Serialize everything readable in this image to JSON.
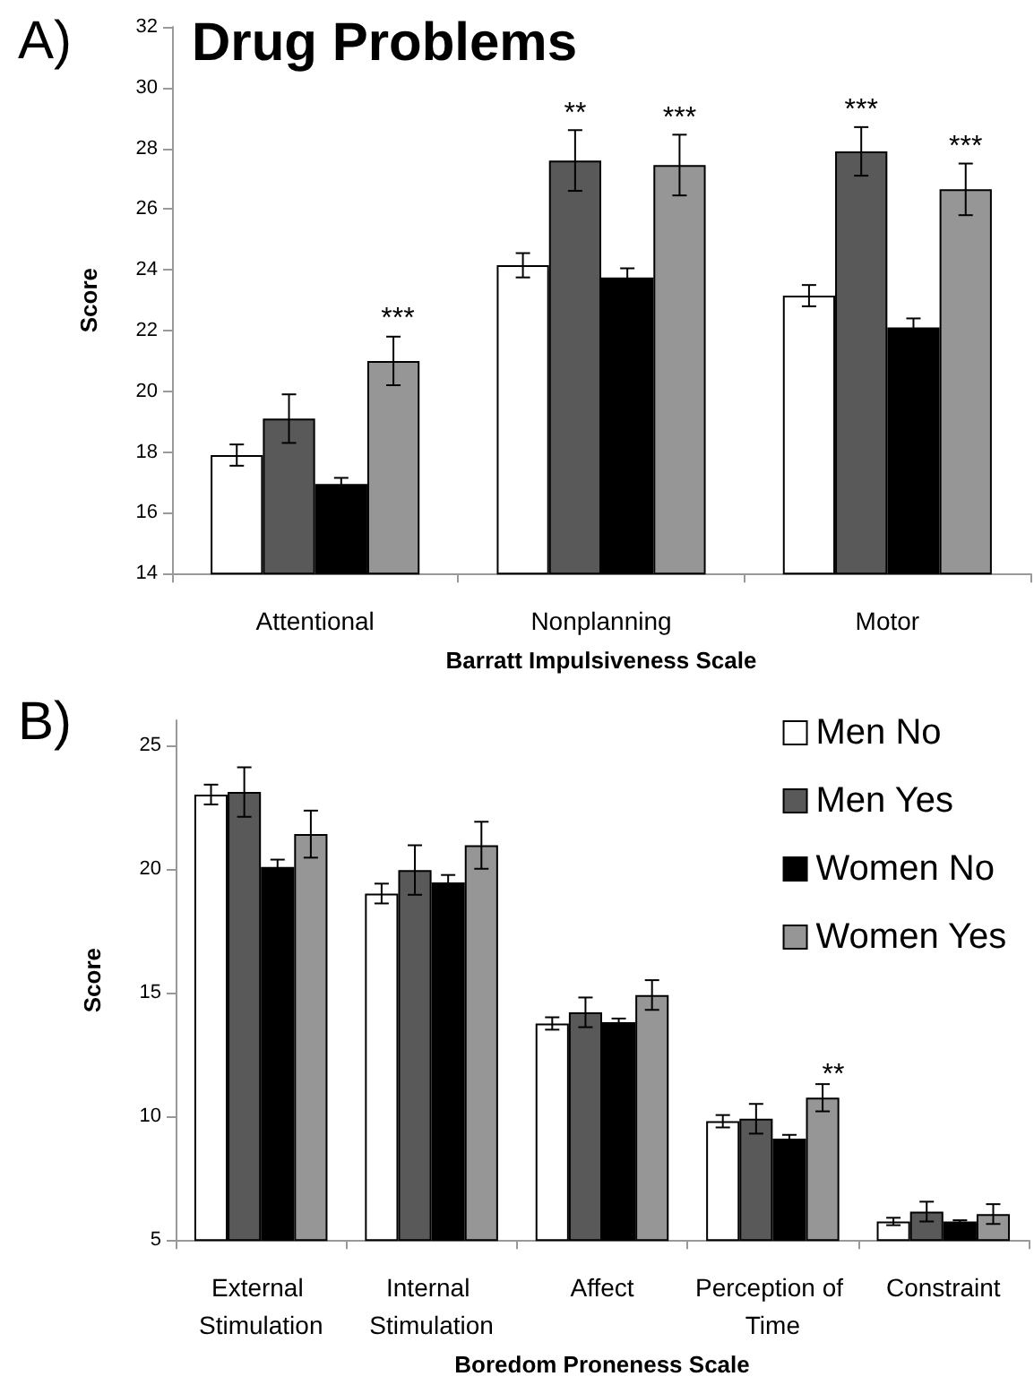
{
  "chart_data": [
    {
      "type": "bar",
      "title": "Drug Problems",
      "xlabel": "Barratt Impulsiveness Scale",
      "ylabel": "Score",
      "categories": [
        "Attentional",
        "Nonplanning",
        "Motor"
      ],
      "series": [
        {
          "color": "#ffffff",
          "values": [
            17.9,
            24.15,
            23.15
          ],
          "errors": [
            0.35,
            0.4,
            0.35
          ]
        },
        {
          "color": "#595959",
          "values": [
            19.1,
            27.6,
            27.9
          ],
          "errors": [
            0.8,
            1.0,
            0.8
          ]
        },
        {
          "color": "#000000",
          "values": [
            16.95,
            23.75,
            22.1
          ],
          "errors": [
            0.2,
            0.3,
            0.3
          ]
        },
        {
          "color": "#969696",
          "values": [
            21.0,
            27.45,
            26.65
          ],
          "errors": [
            0.8,
            1.0,
            0.85
          ]
        }
      ],
      "ylim": [
        14,
        32
      ],
      "yticks": [
        14,
        16,
        18,
        20,
        22,
        24,
        26,
        28,
        30,
        32
      ],
      "grid": false,
      "legend": false,
      "annotations": [
        "A)",
        {
          "text": "**",
          "x": "Nonplanning",
          "y": 27.6
        },
        {
          "text": "***",
          "x": "Nonplanning",
          "y": 27.45
        },
        {
          "text": "***",
          "x": "Motor",
          "y": 27.9
        },
        {
          "text": "***",
          "x": "Motor",
          "y": 26.65
        },
        "***"
      ]
    },
    {
      "type": "bar",
      "xlabel": "Boredom Proneness Scale",
      "ylabel": "Score",
      "categories": [
        "External Stimulation",
        "Internal Stimulation",
        "Affect",
        "Perception of Time",
        "Constraint"
      ],
      "series": [
        {
          "name": "Men No",
          "color": "#ffffff",
          "values": [
            23.0,
            19.0,
            13.75,
            9.8,
            5.75
          ],
          "errors": [
            0.4,
            0.4,
            0.25,
            0.25,
            0.15
          ]
        },
        {
          "name": "Men Yes",
          "color": "#595959",
          "values": [
            23.1,
            19.95,
            14.2,
            9.9,
            6.15
          ],
          "errors": [
            1.0,
            1.0,
            0.6,
            0.6,
            0.4
          ]
        },
        {
          "name": "Women No",
          "color": "#000000",
          "values": [
            20.07,
            19.45,
            13.8,
            9.1,
            5.75
          ],
          "errors": [
            0.3,
            0.3,
            0.15,
            0.15,
            0.05
          ]
        },
        {
          "name": "Women Yes",
          "color": "#969696",
          "values": [
            21.4,
            20.95,
            14.9,
            10.75,
            6.05
          ],
          "errors": [
            0.95,
            0.95,
            0.6,
            0.55,
            0.4
          ]
        }
      ],
      "ylim": [
        5,
        26
      ],
      "yticks": [
        5,
        10,
        15,
        20,
        25
      ],
      "grid": false,
      "legend": "top right",
      "annotations": [
        "B)",
        "**"
      ]
    }
  ]
}
